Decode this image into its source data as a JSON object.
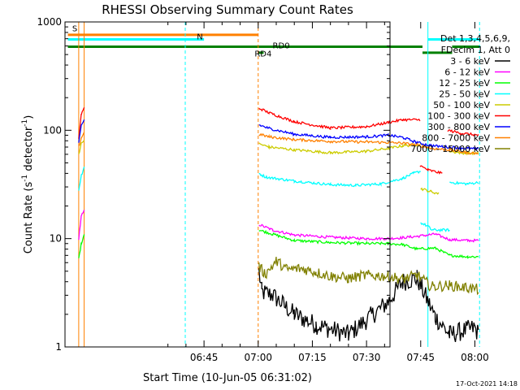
{
  "chart_data": {
    "type": "line",
    "title": "RHESSI Observing Summary Count Rates",
    "xlabel": "Start Time (10-Jun-05 06:31:02)",
    "ylabel_main": "Count Rate (s",
    "ylabel_sup1": "-1",
    "ylabel_mid": " detector",
    "ylabel_sup2": "-1",
    "ylabel_end": ")",
    "yscale": "log",
    "ylim": [
      1,
      1000
    ],
    "xlim_minutes": [
      6.5,
      96.5
    ],
    "x_ticks": [
      {
        "label": "06:45",
        "minutes": 45
      },
      {
        "label": "07:00",
        "minutes": 60
      },
      {
        "label": "07:15",
        "minutes": 75
      },
      {
        "label": "07:30",
        "minutes": 90
      },
      {
        "label": "07:45",
        "minutes": 105
      },
      {
        "label": "08:00",
        "minutes": 120
      }
    ],
    "y_ticks": [
      {
        "label": "1",
        "value": 1
      },
      {
        "label": "10",
        "value": 10
      },
      {
        "label": "100",
        "value": 100
      },
      {
        "label": "1000",
        "value": 1000
      }
    ],
    "legend_header": [
      "Det 1,3,4,5,6,9,",
      "FDecim 1, Att 0"
    ],
    "series": [
      {
        "name": "3 - 6 keV",
        "color": "#000000",
        "segments": [
          [
            [
              60.2,
              5
            ],
            [
              61,
              3.2
            ],
            [
              64,
              3
            ],
            [
              70,
              2
            ],
            [
              76,
              1.6
            ],
            [
              85,
              1.3
            ],
            [
              96,
              2.6
            ],
            [
              100,
              4
            ],
            [
              104,
              4.3
            ],
            [
              109,
              1.9
            ],
            [
              113,
              1.3
            ],
            [
              120,
              1.5
            ],
            [
              121,
              1.3
            ]
          ]
        ]
      },
      {
        "name": "6 - 12 keV",
        "color": "#ff00ff",
        "segments": [
          [
            [
              10.3,
              10
            ],
            [
              11,
              16
            ],
            [
              11.8,
              18
            ]
          ],
          [
            [
              60.2,
              13.5
            ],
            [
              64,
              12
            ],
            [
              70,
              10.8
            ],
            [
              80,
              10.3
            ],
            [
              90,
              10
            ],
            [
              96,
              10
            ],
            [
              100,
              10.2
            ],
            [
              104,
              10.5
            ],
            [
              109,
              11
            ],
            [
              113,
              9.8
            ],
            [
              118,
              9.6
            ],
            [
              121,
              9.6
            ]
          ]
        ]
      },
      {
        "name": "12 - 25 keV",
        "color": "#00ff00",
        "segments": [
          [
            [
              10.3,
              6.5
            ],
            [
              11,
              9
            ],
            [
              11.8,
              11
            ]
          ],
          [
            [
              60.2,
              12
            ],
            [
              64,
              11
            ],
            [
              70,
              9.6
            ],
            [
              80,
              9.2
            ],
            [
              90,
              9
            ],
            [
              96,
              9
            ],
            [
              100,
              8.8
            ],
            [
              104,
              8
            ],
            [
              109,
              8.2
            ],
            [
              113,
              7
            ],
            [
              118,
              6.8
            ],
            [
              121,
              6.8
            ]
          ]
        ]
      },
      {
        "name": "25 - 50 keV",
        "color": "#00ffff",
        "segments": [
          [
            [
              10.3,
              28
            ],
            [
              11,
              38
            ],
            [
              11.8,
              45
            ]
          ],
          [
            [
              60.2,
              40
            ],
            [
              62,
              37
            ],
            [
              70,
              34
            ],
            [
              80,
              31.5
            ],
            [
              87,
              31
            ],
            [
              94,
              32
            ],
            [
              100,
              36
            ],
            [
              103,
              40
            ],
            [
              105,
              42
            ]
          ],
          [
            [
              105,
              14
            ],
            [
              107,
              13
            ],
            [
              108,
              12
            ]
          ],
          [
            [
              108,
              12
            ],
            [
              113,
              12
            ]
          ],
          [
            [
              113,
              33
            ],
            [
              118,
              32
            ],
            [
              121,
              33
            ]
          ]
        ]
      },
      {
        "name": "50 - 100 keV",
        "color": "#cccc00",
        "segments": [
          [
            [
              10.3,
              60
            ],
            [
              11,
              75
            ],
            [
              11.8,
              82
            ]
          ],
          [
            [
              60.2,
              75
            ],
            [
              63,
              70
            ],
            [
              70,
              66
            ],
            [
              80,
              62
            ],
            [
              90,
              64
            ],
            [
              96,
              68
            ],
            [
              100,
              72
            ],
            [
              105,
              74
            ]
          ],
          [
            [
              105,
              29
            ],
            [
              108,
              27
            ],
            [
              110,
              26
            ]
          ],
          [
            [
              113,
              64
            ],
            [
              116,
              62
            ],
            [
              121,
              61
            ]
          ]
        ]
      },
      {
        "name": "100 - 300 keV",
        "color": "#ff0000",
        "segments": [
          [
            [
              10.3,
              85
            ],
            [
              11,
              140
            ],
            [
              11.8,
              160
            ]
          ],
          [
            [
              60.2,
              160
            ],
            [
              63,
              145
            ],
            [
              70,
              120
            ],
            [
              80,
              105
            ],
            [
              90,
              108
            ],
            [
              96,
              118
            ],
            [
              100,
              125
            ],
            [
              104.8,
              125
            ]
          ],
          [
            [
              104.8,
              47
            ],
            [
              107,
              43
            ],
            [
              111,
              40
            ]
          ],
          [
            [
              112.5,
              100
            ],
            [
              116,
              94
            ],
            [
              121,
              90
            ]
          ]
        ]
      },
      {
        "name": "300 - 800 keV",
        "color": "#0000ff",
        "segments": [
          [
            [
              10.3,
              75
            ],
            [
              11,
              110
            ],
            [
              11.8,
              125
            ]
          ],
          [
            [
              60.2,
              112
            ],
            [
              63,
              104
            ],
            [
              70,
              92
            ],
            [
              80,
              86
            ],
            [
              90,
              87
            ],
            [
              96,
              90
            ],
            [
              100,
              86
            ],
            [
              104,
              77
            ],
            [
              108,
              72
            ],
            [
              113,
              70
            ],
            [
              118,
              68
            ],
            [
              121,
              67
            ]
          ]
        ]
      },
      {
        "name": "800 - 7000 keV",
        "color": "#ff8000",
        "segments": [
          [
            [
              10.3,
              70
            ],
            [
              11,
              85
            ],
            [
              11.8,
              95
            ]
          ],
          [
            [
              60.2,
              92
            ],
            [
              63,
              87
            ],
            [
              70,
              82
            ],
            [
              80,
              79
            ],
            [
              90,
              78
            ],
            [
              96,
              77
            ],
            [
              100,
              76
            ],
            [
              104,
              73
            ],
            [
              108,
              68
            ],
            [
              113,
              66
            ],
            [
              118,
              62
            ],
            [
              121,
              61
            ]
          ]
        ]
      },
      {
        "name": "7000 - 15000 keV",
        "color": "#808000",
        "segments": [
          [
            [
              60.2,
              5.5
            ],
            [
              62,
              4.7
            ],
            [
              65,
              6.2
            ],
            [
              68,
              5.2
            ],
            [
              72,
              5.3
            ],
            [
              76,
              4.9
            ],
            [
              80,
              4.5
            ],
            [
              85,
              4.3
            ],
            [
              90,
              4.6
            ],
            [
              96,
              4.5
            ],
            [
              100,
              4.2
            ],
            [
              104,
              4.6
            ],
            [
              108,
              3.6
            ],
            [
              113,
              3.7
            ],
            [
              118,
              3.5
            ],
            [
              121,
              3.4
            ]
          ]
        ]
      }
    ],
    "annotations": [
      {
        "label": "S",
        "minutes": 8.5,
        "value": 820,
        "color": "#ff8000"
      },
      {
        "label": "N",
        "minutes": 43,
        "value": 690,
        "color": "#00ffff"
      },
      {
        "label": "RD0",
        "minutes": 64,
        "value": 570,
        "color": "#008000"
      },
      {
        "label": "RD4",
        "minutes": 59,
        "value": 480,
        "color": "#008000"
      }
    ],
    "bars": [
      {
        "name": "S",
        "color": "#ff8000",
        "value": 760,
        "ranges": [
          [
            7.3,
            60
          ]
        ]
      },
      {
        "name": "N",
        "color": "#00ffff",
        "value": 690,
        "ranges": [
          [
            7.3,
            45
          ],
          [
            107,
            121.5
          ]
        ]
      },
      {
        "name": "RD0",
        "color": "#008000",
        "value": 590,
        "ranges": [
          [
            7.3,
            105.5
          ],
          [
            113.7,
            121.5
          ]
        ]
      },
      {
        "name": "RD4",
        "color": "#008000",
        "value": 520,
        "ranges": [
          [
            60,
            61.5
          ],
          [
            105.5,
            113.7
          ]
        ]
      }
    ],
    "vlines": [
      {
        "minutes": 10.3,
        "color": "#ff8000",
        "dashed": false
      },
      {
        "minutes": 11.8,
        "color": "#ff8000",
        "dashed": false
      },
      {
        "minutes": 39.8,
        "color": "#00ffff",
        "dashed": true
      },
      {
        "minutes": 60,
        "color": "#ff8000",
        "dashed": true
      },
      {
        "minutes": 107,
        "color": "#00ffff",
        "dashed": false
      },
      {
        "minutes": 121.3,
        "color": "#00ffff",
        "dashed": true
      }
    ],
    "footer_date": "17-Oct-2021 14:18"
  }
}
